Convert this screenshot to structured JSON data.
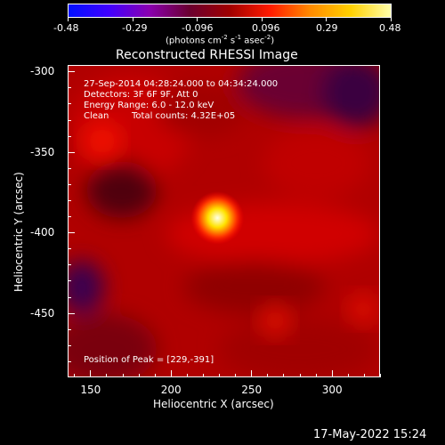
{
  "colorbar": {
    "tick_labels": [
      "-0.48",
      "-0.29",
      "-0.096",
      "0.096",
      "0.29",
      "0.48"
    ],
    "unit_main": "(photons cm",
    "unit_exp1": "-2",
    "unit_mid": " s",
    "unit_exp2": "-1",
    "unit_mid2": " asec",
    "unit_exp3": "-2",
    "unit_end": ")",
    "colors": [
      "#0010ff",
      "#4000ff",
      "#8a00b0",
      "#6a0030",
      "#a00000",
      "#ff1a00",
      "#ff8a00",
      "#ffd000",
      "#ffffaa"
    ]
  },
  "chart_data": {
    "type": "heatmap",
    "title": "Reconstructed RHESSI Image",
    "xlabel": "Heliocentric X (arcsec)",
    "ylabel": "Heliocentric Y (arcsec)",
    "xlim": [
      136,
      330
    ],
    "ylim": [
      -490,
      -296
    ],
    "x_ticks": [
      "150",
      "200",
      "250",
      "300"
    ],
    "x_tick_values": [
      150,
      200,
      250,
      300
    ],
    "y_ticks": [
      "-300",
      "-350",
      "-400",
      "-450"
    ],
    "y_tick_values": [
      -300,
      -350,
      -400,
      -450
    ],
    "peak": {
      "x": 229,
      "y": -391
    },
    "sources": [
      {
        "x": 229,
        "y": -391,
        "intensity": 1.0,
        "kind": "peak"
      },
      {
        "x": 157,
        "y": -343,
        "intensity": 0.45,
        "kind": "secondary"
      },
      {
        "x": 265,
        "y": -455,
        "intensity": 0.3,
        "kind": "secondary"
      },
      {
        "x": 320,
        "y": -448,
        "intensity": 0.25,
        "kind": "secondary"
      }
    ]
  },
  "info": {
    "time_range": "27-Sep-2014 04:28:24.000 to 04:34:24.000",
    "detectors": "Detectors: 3F 6F 9F, Att 0",
    "energy": "Energy Range: 6.0 - 12.0 keV",
    "algorithm": "Clean",
    "counts": "Total counts: 4.32E+05",
    "peak_position": "Position of Peak = [229,-391]"
  },
  "footer": {
    "date": "17-May-2022 15:24"
  }
}
